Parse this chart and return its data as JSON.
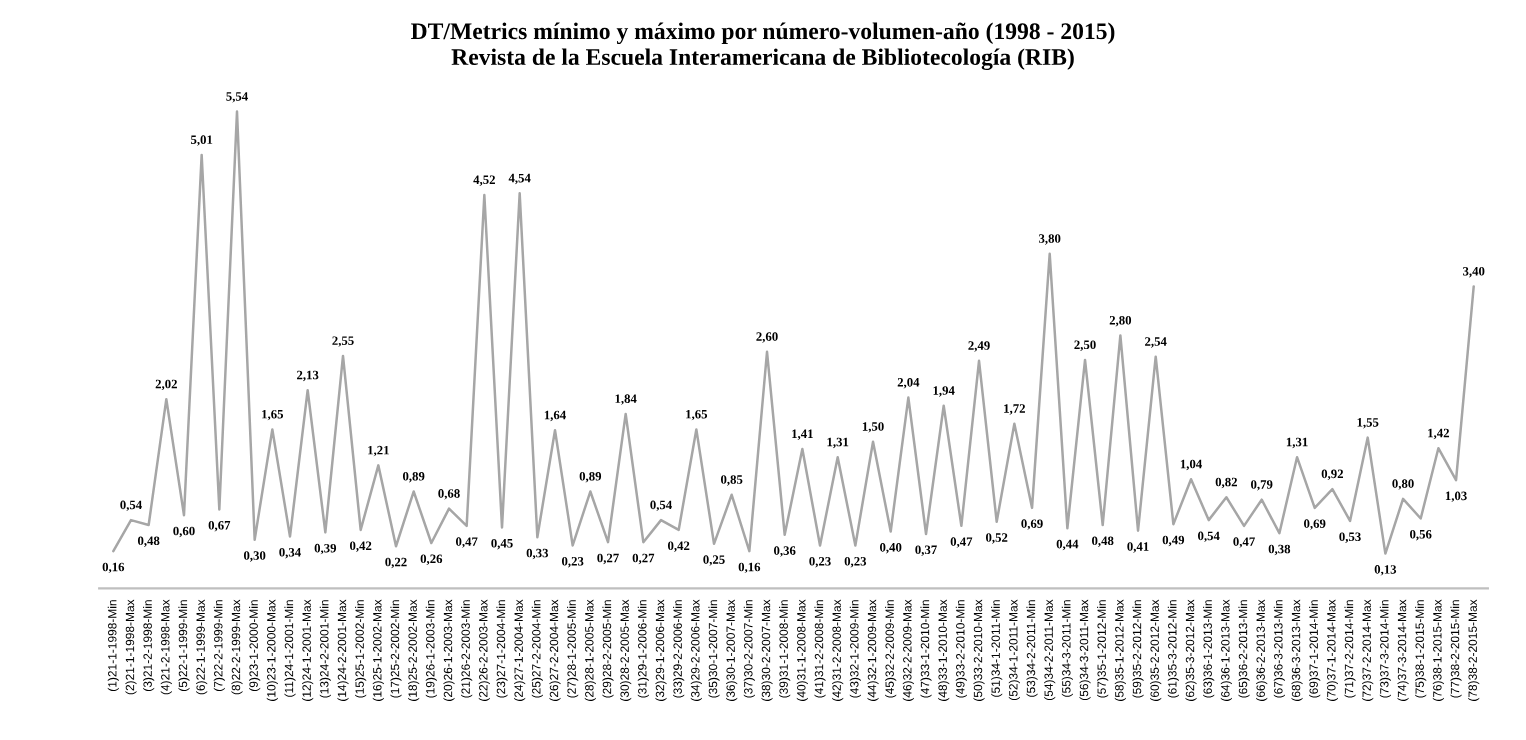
{
  "chart_data": {
    "type": "line",
    "title": "DT/Metrics mínimo y máximo por número-volumen-año (1998 - 2015)",
    "subtitle": "Revista de la Escuela Interamericana de Bibliotecología (RIB)",
    "categories": [
      "(1)21-1-1998-Min",
      "(2)21-1-1998-Max",
      "(3)21-2-1998-Min",
      "(4)21-2-1998-Max",
      "(5)22-1-1999-Min",
      "(6)22-1-1999-Max",
      "(7)22-2-1999-Min",
      "(8)22-2-1999-Max",
      "(9)23-1-2000-Min",
      "(10)23-1-2000-Max",
      "(11)24-1-2001-Min",
      "(12)24-1-2001-Max",
      "(13)24-2-2001-Min",
      "(14)24-2-2001-Max",
      "(15)25-1-2002-Min",
      "(16)25-1-2002-Max",
      "(17)25-2-2002-Min",
      "(18)25-2-2002-Max",
      "(19)26-1-2003-Min",
      "(20)26-1-2003-Max",
      "(21)26-2-2003-Min",
      "(22)26-2-2003-Max",
      "(23)27-1-2004-Min",
      "(24)27-1-2004-Max",
      "(25)27-2-2004-Min",
      "(26)27-2-2004-Max",
      "(27)28-1-2005-Min",
      "(28)28-1-2005-Max",
      "(29)28-2-2005-Min",
      "(30)28-2-2005-Max",
      "(31)29-1-2006-Min",
      "(32)29-1-2006-Max",
      "(33)29-2-2006-Min",
      "(34)29-2-2006-Max",
      "(35)30-1-2007-Min",
      "(36)30-1-2007-Max",
      "(37)30-2-2007-Min",
      "(38)30-2-2007-Max",
      "(39)31-1-2008-Min",
      "(40)31-1-2008-Max",
      "(41)31-2-2008-Min",
      "(42)31-2-2008-Max",
      "(43)32-1-2009-Min",
      "(44)32-1-2009-Max",
      "(45)32-2-2009-Min",
      "(46)32-2-2009-Max",
      "(47)33-1-2010-Min",
      "(48)33-1-2010-Max",
      "(49)33-2-2010-Min",
      "(50)33-2-2010-Max",
      "(51)34-1-2011-Min",
      "(52)34-1-2011-Max",
      "(53)34-2-2011-Min",
      "(54)34-2-2011-Max",
      "(55)34-3-2011-Min",
      "(56)34-3-2011-Max",
      "(57)35-1-2012-Min",
      "(58)35-1-2012-Max",
      "(59)35-2-2012-Min",
      "(60)35-2-2012-Max",
      "(61)35-3-2012-Min",
      "(62)35-3-2012-Max",
      "(63)36-1-2013-Min",
      "(64)36-1-2013-Max",
      "(65)36-2-2013-Min",
      "(66)36-2-2013-Max",
      "(67)36-3-2013-Min",
      "(68)36-3-2013-Max",
      "(69)37-1-2014-Min",
      "(70)37-1-2014-Max",
      "(71)37-2-2014-Min",
      "(72)37-2-2014-Max",
      "(73)37-3-2014-Min",
      "(74)37-3-2014-Max",
      "(75)38-1-2015-Min",
      "(76)38-1-2015-Max",
      "(77)38-2-2015-Min",
      "(78)38-2-2015-Max"
    ],
    "series": [
      {
        "color": "#a6a6a6",
        "values": [
          0.16,
          0.54,
          0.48,
          2.02,
          0.6,
          5.01,
          0.67,
          5.54,
          0.3,
          1.65,
          0.34,
          2.13,
          0.39,
          2.55,
          0.42,
          1.21,
          0.22,
          0.89,
          0.26,
          0.68,
          0.47,
          4.52,
          0.45,
          4.54,
          0.33,
          1.64,
          0.23,
          0.89,
          0.27,
          1.84,
          0.27,
          0.54,
          0.42,
          1.65,
          0.25,
          0.85,
          0.16,
          2.6,
          0.36,
          1.41,
          0.23,
          1.31,
          0.23,
          1.5,
          0.4,
          2.04,
          0.37,
          1.94,
          0.47,
          2.49,
          0.52,
          1.72,
          0.69,
          3.8,
          0.44,
          2.5,
          0.48,
          2.8,
          0.41,
          2.54,
          0.49,
          1.04,
          0.54,
          0.82,
          0.47,
          0.79,
          0.38,
          1.31,
          0.69,
          0.92,
          0.53,
          1.55,
          0.13,
          0.8,
          0.56,
          1.42,
          1.03,
          3.4
        ],
        "value_labels": [
          "0,16",
          "0,54",
          "0,48",
          "2,02",
          "0,60",
          "5,01",
          "0,67",
          "5,54",
          "0,30",
          "1,65",
          "0,34",
          "2,13",
          "0,39",
          "2,55",
          "0,42",
          "1,21",
          "0,22",
          "0,89",
          "0,26",
          "0,68",
          "0,47",
          "4,52",
          "0,45",
          "4,54",
          "0,33",
          "1,64",
          "0,23",
          "0,89",
          "0,27",
          "1,84",
          "0,27",
          "0,54",
          "0,42",
          "1,65",
          "0,25",
          "0,85",
          "0,16",
          "2,60",
          "0,36",
          "1,41",
          "0,23",
          "1,31",
          "0,23",
          "1,50",
          "0,40",
          "2,04",
          "0,37",
          "1,94",
          "0,47",
          "2,49",
          "0,52",
          "1,72",
          "0,69",
          "3,80",
          "0,44",
          "2,50",
          "0,48",
          "2,80",
          "0,41",
          "2,54",
          "0,49",
          "1,04",
          "0,54",
          "0,82",
          "0,47",
          "0,79",
          "0,38",
          "1,31",
          "0,69",
          "0,92",
          "0,53",
          "1,55",
          "0,13",
          "0,80",
          "0,56",
          "1,42",
          "1,03",
          "3,40"
        ]
      }
    ],
    "marker": "none",
    "line_style": "solid",
    "grid": false,
    "legend": false,
    "tick_labels": "x"
  }
}
